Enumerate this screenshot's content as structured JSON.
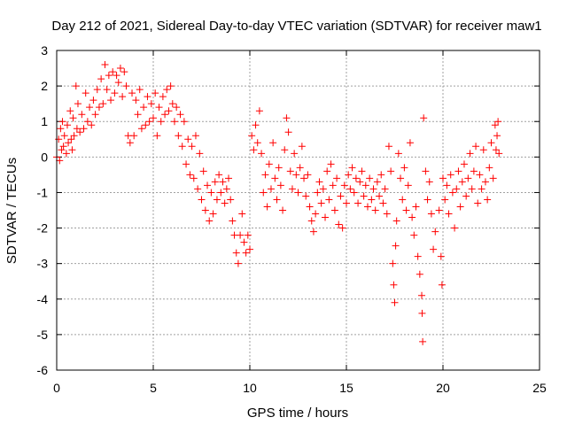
{
  "chart_data": {
    "type": "scatter",
    "title": "Day 212 of 2021, Sidereal Day-to-day VTEC variation (SDTVAR) for receiver maw1",
    "xlabel": "GPS time / hours",
    "ylabel": "SDTVAR / TECUs",
    "xlim": [
      0,
      25
    ],
    "ylim": [
      -6,
      3
    ],
    "xticks": [
      0,
      5,
      10,
      15,
      20,
      25
    ],
    "yticks": [
      -6,
      -5,
      -4,
      -3,
      -2,
      -1,
      0,
      1,
      2,
      3
    ],
    "xtick_labels": [
      "0",
      "5",
      "10",
      "15",
      "20",
      "25"
    ],
    "ytick_labels": [
      "-6",
      "-5",
      "-4",
      "-3",
      "-2",
      "-1",
      "0",
      "1",
      "2",
      "3"
    ],
    "grid": true,
    "marker": "+",
    "color": "#ff0000",
    "series": [
      {
        "name": "maw1",
        "points": [
          [
            0.0,
            0.0
          ],
          [
            0.1,
            0.5
          ],
          [
            0.15,
            -0.1
          ],
          [
            0.2,
            0.8
          ],
          [
            0.25,
            0.2
          ],
          [
            0.3,
            1.0
          ],
          [
            0.35,
            0.3
          ],
          [
            0.4,
            0.6
          ],
          [
            0.5,
            0.1
          ],
          [
            0.55,
            0.9
          ],
          [
            0.6,
            0.4
          ],
          [
            0.7,
            1.3
          ],
          [
            0.75,
            0.5
          ],
          [
            0.8,
            0.2
          ],
          [
            0.85,
            1.1
          ],
          [
            0.9,
            0.6
          ],
          [
            1.0,
            2.0
          ],
          [
            1.05,
            0.8
          ],
          [
            1.1,
            1.5
          ],
          [
            1.2,
            0.7
          ],
          [
            1.3,
            1.2
          ],
          [
            1.4,
            0.8
          ],
          [
            1.5,
            1.8
          ],
          [
            1.6,
            1.0
          ],
          [
            1.7,
            1.4
          ],
          [
            1.8,
            0.9
          ],
          [
            1.9,
            1.6
          ],
          [
            2.0,
            1.2
          ],
          [
            2.1,
            1.9
          ],
          [
            2.2,
            1.4
          ],
          [
            2.3,
            2.2
          ],
          [
            2.4,
            1.5
          ],
          [
            2.5,
            2.6
          ],
          [
            2.6,
            1.9
          ],
          [
            2.7,
            2.3
          ],
          [
            2.8,
            1.6
          ],
          [
            2.9,
            2.4
          ],
          [
            3.0,
            1.8
          ],
          [
            3.1,
            2.3
          ],
          [
            3.2,
            2.1
          ],
          [
            3.3,
            2.5
          ],
          [
            3.4,
            1.7
          ],
          [
            3.5,
            2.4
          ],
          [
            3.6,
            2.0
          ],
          [
            3.7,
            0.6
          ],
          [
            3.8,
            0.4
          ],
          [
            3.9,
            1.8
          ],
          [
            4.0,
            0.6
          ],
          [
            4.1,
            1.6
          ],
          [
            4.2,
            1.2
          ],
          [
            4.3,
            1.9
          ],
          [
            4.4,
            0.8
          ],
          [
            4.5,
            1.4
          ],
          [
            4.6,
            0.9
          ],
          [
            4.7,
            1.7
          ],
          [
            4.8,
            1.0
          ],
          [
            4.9,
            1.5
          ],
          [
            5.0,
            1.1
          ],
          [
            5.1,
            1.8
          ],
          [
            5.2,
            0.6
          ],
          [
            5.3,
            1.4
          ],
          [
            5.4,
            1.0
          ],
          [
            5.5,
            1.7
          ],
          [
            5.6,
            1.2
          ],
          [
            5.7,
            1.9
          ],
          [
            5.8,
            1.3
          ],
          [
            5.9,
            2.0
          ],
          [
            6.0,
            1.5
          ],
          [
            6.1,
            1.0
          ],
          [
            6.2,
            1.4
          ],
          [
            6.3,
            0.6
          ],
          [
            6.4,
            1.2
          ],
          [
            6.5,
            0.3
          ],
          [
            6.6,
            1.0
          ],
          [
            6.7,
            -0.2
          ],
          [
            6.8,
            0.5
          ],
          [
            6.9,
            -0.5
          ],
          [
            7.0,
            0.3
          ],
          [
            7.1,
            -0.6
          ],
          [
            7.2,
            0.6
          ],
          [
            7.3,
            -0.9
          ],
          [
            7.4,
            0.1
          ],
          [
            7.5,
            -1.2
          ],
          [
            7.6,
            -0.4
          ],
          [
            7.7,
            -1.5
          ],
          [
            7.8,
            -0.8
          ],
          [
            7.9,
            -1.8
          ],
          [
            8.0,
            -1.0
          ],
          [
            8.1,
            -1.6
          ],
          [
            8.2,
            -0.7
          ],
          [
            8.3,
            -1.2
          ],
          [
            8.4,
            -0.5
          ],
          [
            8.5,
            -1.0
          ],
          [
            8.6,
            -0.7
          ],
          [
            8.7,
            -1.3
          ],
          [
            8.8,
            -0.9
          ],
          [
            8.9,
            -0.6
          ],
          [
            9.0,
            -1.2
          ],
          [
            9.1,
            -1.8
          ],
          [
            9.2,
            -2.2
          ],
          [
            9.3,
            -2.7
          ],
          [
            9.4,
            -3.0
          ],
          [
            9.5,
            -2.2
          ],
          [
            9.6,
            -1.6
          ],
          [
            9.7,
            -2.4
          ],
          [
            9.8,
            -2.7
          ],
          [
            9.9,
            -2.2
          ],
          [
            10.0,
            -2.6
          ],
          [
            10.1,
            0.6
          ],
          [
            10.2,
            0.2
          ],
          [
            10.3,
            0.9
          ],
          [
            10.4,
            0.4
          ],
          [
            10.5,
            1.3
          ],
          [
            10.6,
            0.1
          ],
          [
            10.7,
            -1.0
          ],
          [
            10.8,
            -0.5
          ],
          [
            10.9,
            -1.4
          ],
          [
            11.0,
            -0.2
          ],
          [
            11.1,
            -0.9
          ],
          [
            11.2,
            0.4
          ],
          [
            11.3,
            -0.6
          ],
          [
            11.4,
            -1.2
          ],
          [
            11.5,
            -0.3
          ],
          [
            11.6,
            -0.8
          ],
          [
            11.7,
            -1.5
          ],
          [
            11.8,
            0.2
          ],
          [
            11.9,
            1.1
          ],
          [
            12.0,
            0.7
          ],
          [
            12.1,
            -0.4
          ],
          [
            12.2,
            -0.9
          ],
          [
            12.3,
            0.1
          ],
          [
            12.4,
            -0.5
          ],
          [
            12.5,
            -1.0
          ],
          [
            12.6,
            -0.3
          ],
          [
            12.7,
            0.3
          ],
          [
            12.8,
            -0.6
          ],
          [
            12.9,
            -1.1
          ],
          [
            13.0,
            -0.5
          ],
          [
            13.1,
            -1.4
          ],
          [
            13.2,
            -1.8
          ],
          [
            13.3,
            -2.1
          ],
          [
            13.4,
            -1.6
          ],
          [
            13.5,
            -1.0
          ],
          [
            13.6,
            -0.7
          ],
          [
            13.7,
            -1.3
          ],
          [
            13.8,
            -0.9
          ],
          [
            13.9,
            -1.7
          ],
          [
            14.0,
            -0.4
          ],
          [
            14.1,
            -1.2
          ],
          [
            14.2,
            -0.2
          ],
          [
            14.3,
            -0.8
          ],
          [
            14.4,
            -1.5
          ],
          [
            14.5,
            -0.6
          ],
          [
            14.6,
            -1.9
          ],
          [
            14.7,
            -1.1
          ],
          [
            14.8,
            -2.0
          ],
          [
            14.9,
            -0.8
          ],
          [
            15.0,
            -1.3
          ],
          [
            15.1,
            -0.5
          ],
          [
            15.2,
            -0.9
          ],
          [
            15.3,
            -0.3
          ],
          [
            15.4,
            -1.0
          ],
          [
            15.5,
            -0.6
          ],
          [
            15.6,
            -1.3
          ],
          [
            15.7,
            -0.7
          ],
          [
            15.8,
            -0.4
          ],
          [
            15.9,
            -1.1
          ],
          [
            16.0,
            -0.8
          ],
          [
            16.1,
            -1.4
          ],
          [
            16.2,
            -0.6
          ],
          [
            16.3,
            -1.2
          ],
          [
            16.4,
            -0.9
          ],
          [
            16.5,
            -1.5
          ],
          [
            16.6,
            -0.7
          ],
          [
            16.7,
            -1.1
          ],
          [
            16.8,
            -0.5
          ],
          [
            16.9,
            -1.3
          ],
          [
            17.0,
            -0.9
          ],
          [
            17.1,
            -1.6
          ],
          [
            17.2,
            0.3
          ],
          [
            17.3,
            -0.4
          ],
          [
            17.4,
            -3.0
          ],
          [
            17.45,
            -3.6
          ],
          [
            17.5,
            -4.1
          ],
          [
            17.55,
            -2.5
          ],
          [
            17.6,
            -1.8
          ],
          [
            17.7,
            0.1
          ],
          [
            17.8,
            -0.6
          ],
          [
            17.9,
            -1.2
          ],
          [
            18.0,
            -0.3
          ],
          [
            18.1,
            -1.5
          ],
          [
            18.2,
            -0.8
          ],
          [
            18.3,
            0.4
          ],
          [
            18.4,
            -1.7
          ],
          [
            18.5,
            -2.2
          ],
          [
            18.6,
            -1.4
          ],
          [
            18.7,
            -2.8
          ],
          [
            18.8,
            -3.3
          ],
          [
            18.9,
            -3.9
          ],
          [
            18.92,
            -4.4
          ],
          [
            18.95,
            -5.2
          ],
          [
            19.0,
            1.1
          ],
          [
            19.1,
            -0.4
          ],
          [
            19.2,
            -1.2
          ],
          [
            19.3,
            -0.7
          ],
          [
            19.4,
            -1.6
          ],
          [
            19.5,
            -2.6
          ],
          [
            19.6,
            -2.1
          ],
          [
            19.8,
            -1.5
          ],
          [
            19.9,
            -2.8
          ],
          [
            19.95,
            -3.6
          ],
          [
            20.0,
            -0.6
          ],
          [
            20.1,
            -1.2
          ],
          [
            20.2,
            -0.8
          ],
          [
            20.3,
            -1.6
          ],
          [
            20.4,
            -0.5
          ],
          [
            20.5,
            -1.0
          ],
          [
            20.6,
            -2.0
          ],
          [
            20.7,
            -0.9
          ],
          [
            20.8,
            -0.4
          ],
          [
            20.9,
            -1.4
          ],
          [
            21.0,
            -0.7
          ],
          [
            21.1,
            -0.2
          ],
          [
            21.2,
            -1.1
          ],
          [
            21.3,
            -0.6
          ],
          [
            21.4,
            0.1
          ],
          [
            21.5,
            -0.9
          ],
          [
            21.6,
            -0.4
          ],
          [
            21.7,
            0.3
          ],
          [
            21.8,
            -1.3
          ],
          [
            21.9,
            -0.5
          ],
          [
            22.0,
            -0.9
          ],
          [
            22.1,
            0.2
          ],
          [
            22.2,
            -0.7
          ],
          [
            22.3,
            -1.2
          ],
          [
            22.4,
            -0.3
          ],
          [
            22.5,
            0.4
          ],
          [
            22.6,
            -0.6
          ],
          [
            22.7,
            0.9
          ],
          [
            22.75,
            0.2
          ],
          [
            22.8,
            0.6
          ],
          [
            22.85,
            1.0
          ],
          [
            22.9,
            0.1
          ]
        ]
      }
    ]
  }
}
